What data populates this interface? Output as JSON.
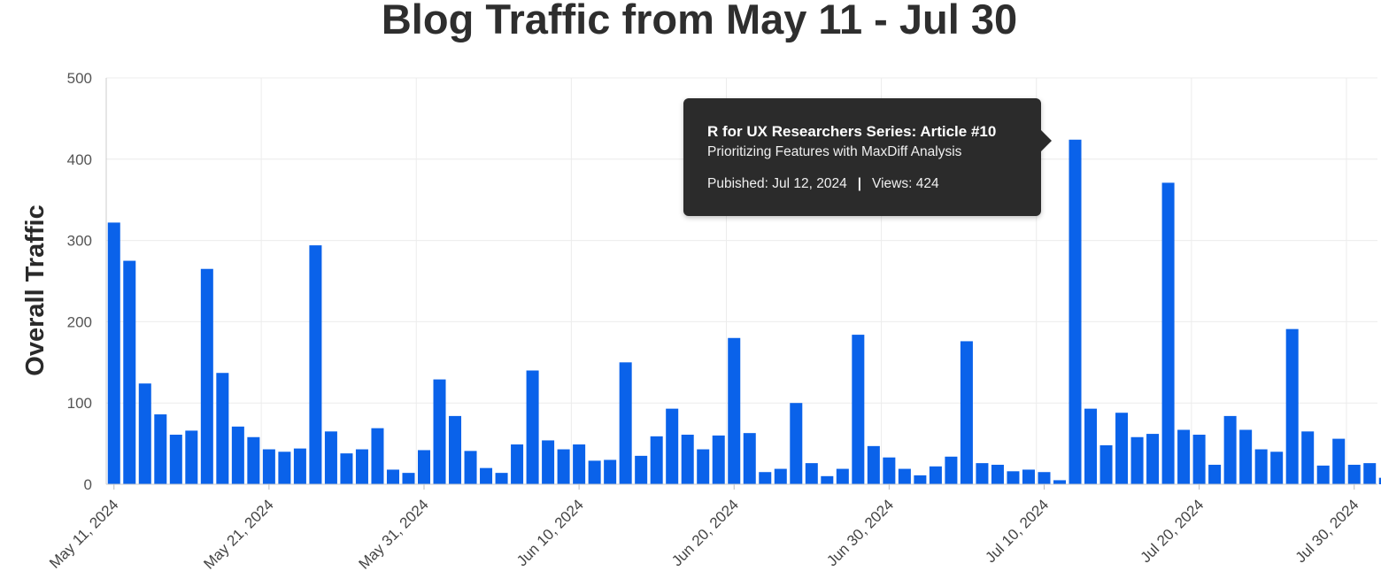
{
  "chart_data": {
    "type": "bar",
    "title": "Blog Traffic from May 11 - Jul 30",
    "ylabel": "Overall Traffic",
    "xlabel": "",
    "ylim": [
      0,
      500
    ],
    "yticks": [
      0,
      100,
      200,
      300,
      400,
      500
    ],
    "x_start": "May 11, 2024",
    "x_end": "Aug 1, 2024",
    "xtick_labels": [
      "May 11, 2024",
      "May 21, 2024",
      "May 31, 2024",
      "Jun 10, 2024",
      "Jun 20, 2024",
      "Jun 30, 2024",
      "Jul 10, 2024",
      "Jul 20, 2024",
      "Jul 30, 2024"
    ],
    "grid": true,
    "bar_color": "#0a62ea",
    "values": [
      322,
      275,
      124,
      86,
      61,
      66,
      265,
      137,
      71,
      58,
      43,
      40,
      44,
      294,
      65,
      38,
      43,
      69,
      18,
      14,
      42,
      129,
      84,
      41,
      20,
      14,
      49,
      140,
      54,
      43,
      49,
      29,
      30,
      150,
      35,
      59,
      93,
      61,
      43,
      60,
      180,
      63,
      15,
      19,
      100,
      26,
      10,
      19,
      184,
      47,
      33,
      19,
      11,
      22,
      34,
      176,
      26,
      24,
      16,
      18,
      15,
      5,
      424,
      93,
      48,
      88,
      58,
      62,
      371,
      67,
      61,
      24,
      84,
      67,
      43,
      40,
      191,
      65,
      23,
      56,
      24,
      26,
      8
    ]
  },
  "tooltip": {
    "title": "R for UX Researchers Series: Article #10",
    "subtitle": "Prioritizing Features with MaxDiff Analysis",
    "published": "Pubished: Jul 12, 2024",
    "separator": "|",
    "views": "Views: 424"
  }
}
